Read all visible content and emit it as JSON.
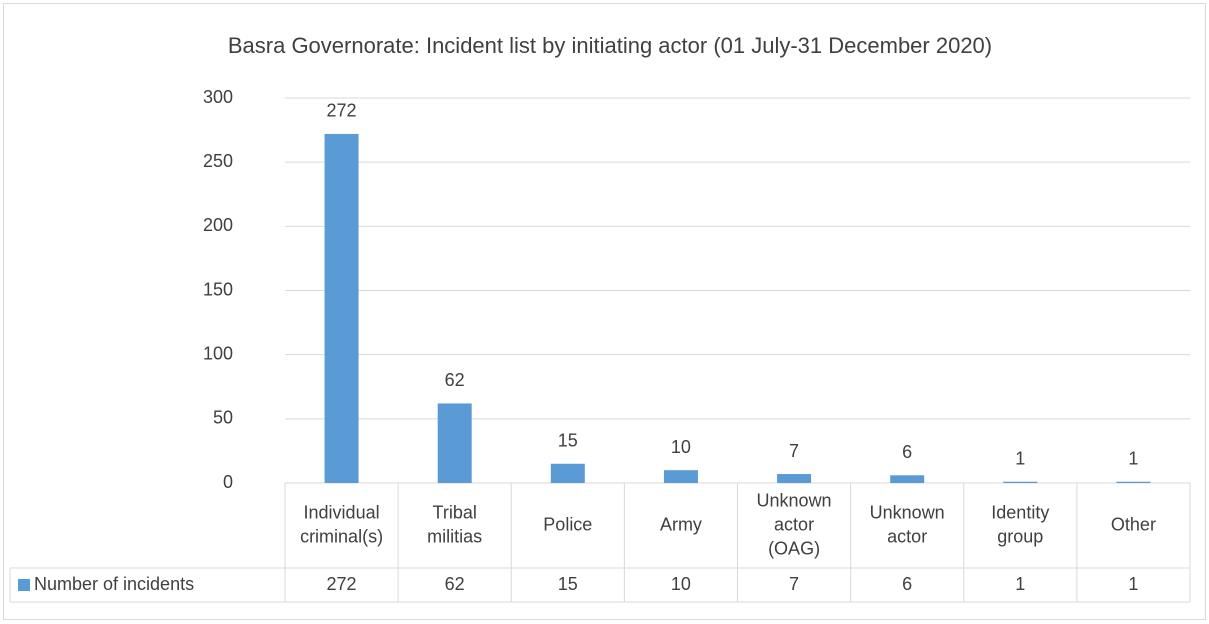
{
  "chart_data": {
    "type": "bar",
    "title": "Basra Governorate: Incident list by initiating actor (01 July-31 December 2020)",
    "categories": [
      "Individual criminal(s)",
      "Tribal militias",
      "Police",
      "Army",
      "Unknown actor (OAG)",
      "Unknown actor",
      "Identity group",
      "Other"
    ],
    "series": [
      {
        "name": "Number of incidents",
        "color": "#5b9bd5",
        "values": [
          272,
          62,
          15,
          10,
          7,
          6,
          1,
          1
        ]
      }
    ],
    "ylim": [
      0,
      300
    ],
    "yticks": [
      0,
      50,
      100,
      150,
      200,
      250,
      300
    ],
    "grid": true
  }
}
